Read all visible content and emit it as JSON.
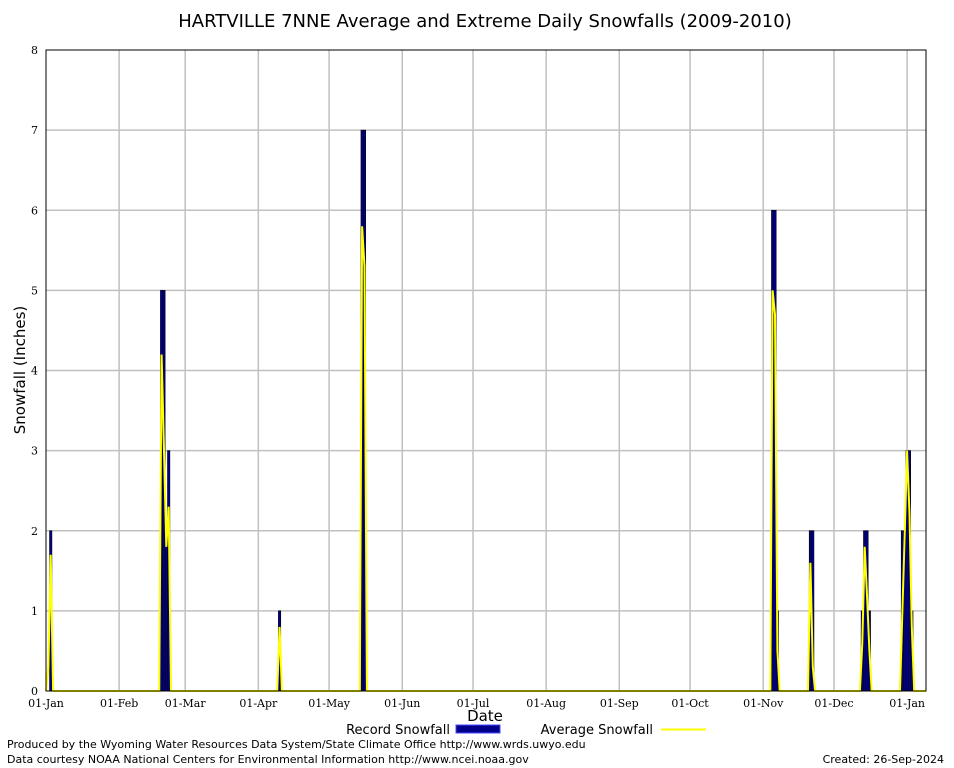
{
  "chart_data": {
    "type": "bar",
    "title": "HARTVILLE 7NNE Average and Extreme Daily Snowfalls (2009-2010)",
    "xlabel": "Date",
    "ylabel": "Snowfall (Inches)",
    "ylim": [
      0,
      8
    ],
    "yticks": [
      "0",
      "1",
      "2",
      "3",
      "4",
      "5",
      "6",
      "7",
      "8"
    ],
    "x_tick_labels": [
      "01-Jan",
      "01-Feb",
      "01-Mar",
      "01-Apr",
      "01-May",
      "01-Jun",
      "01-Jul",
      "01-Aug",
      "01-Sep",
      "01-Oct",
      "01-Nov",
      "01-Dec",
      "01-Jan"
    ],
    "x_tick_days": [
      0,
      31,
      59,
      90,
      120,
      151,
      181,
      212,
      243,
      273,
      304,
      334,
      365
    ],
    "xlim_days": [
      0,
      373
    ],
    "grid": true,
    "legend_placement": "bottom",
    "series": [
      {
        "name": "Record Snowfall",
        "style": "bars",
        "color": "#00008b",
        "points": [
          {
            "day": 2,
            "value": 2.0
          },
          {
            "day": 49,
            "value": 5.0
          },
          {
            "day": 50,
            "value": 5.0
          },
          {
            "day": 51,
            "value": 2.0
          },
          {
            "day": 52,
            "value": 3.0
          },
          {
            "day": 99,
            "value": 1.0
          },
          {
            "day": 134,
            "value": 7.0
          },
          {
            "day": 135,
            "value": 7.0
          },
          {
            "day": 308,
            "value": 6.0
          },
          {
            "day": 309,
            "value": 6.0
          },
          {
            "day": 310,
            "value": 1.0
          },
          {
            "day": 324,
            "value": 2.0
          },
          {
            "day": 325,
            "value": 2.0
          },
          {
            "day": 346,
            "value": 1.0
          },
          {
            "day": 347,
            "value": 2.0
          },
          {
            "day": 348,
            "value": 2.0
          },
          {
            "day": 349,
            "value": 1.0
          },
          {
            "day": 363,
            "value": 2.0
          },
          {
            "day": 364,
            "value": 2.0
          },
          {
            "day": 365,
            "value": 3.0
          },
          {
            "day": 366,
            "value": 3.0
          },
          {
            "day": 367,
            "value": 1.0
          }
        ]
      },
      {
        "name": "Average Snowfall",
        "style": "line",
        "color": "#ffff00",
        "points": [
          {
            "day": 0,
            "value": 0
          },
          {
            "day": 1,
            "value": 0.3
          },
          {
            "day": 2,
            "value": 1.7
          },
          {
            "day": 3,
            "value": 0
          },
          {
            "day": 48,
            "value": 0
          },
          {
            "day": 49,
            "value": 4.2
          },
          {
            "day": 50,
            "value": 3.0
          },
          {
            "day": 51,
            "value": 1.8
          },
          {
            "day": 52,
            "value": 2.3
          },
          {
            "day": 53,
            "value": 0
          },
          {
            "day": 98,
            "value": 0
          },
          {
            "day": 99,
            "value": 0.8
          },
          {
            "day": 100,
            "value": 0
          },
          {
            "day": 133,
            "value": 0
          },
          {
            "day": 134,
            "value": 5.8
          },
          {
            "day": 135,
            "value": 5.3
          },
          {
            "day": 136,
            "value": 0
          },
          {
            "day": 307,
            "value": 0
          },
          {
            "day": 308,
            "value": 5.0
          },
          {
            "day": 309,
            "value": 4.7
          },
          {
            "day": 310,
            "value": 0.5
          },
          {
            "day": 311,
            "value": 0
          },
          {
            "day": 323,
            "value": 0
          },
          {
            "day": 324,
            "value": 1.6
          },
          {
            "day": 325,
            "value": 0.3
          },
          {
            "day": 326,
            "value": 0
          },
          {
            "day": 345,
            "value": 0
          },
          {
            "day": 346,
            "value": 0.6
          },
          {
            "day": 347,
            "value": 1.8
          },
          {
            "day": 348,
            "value": 1.2
          },
          {
            "day": 349,
            "value": 0.5
          },
          {
            "day": 350,
            "value": 0
          },
          {
            "day": 362,
            "value": 0
          },
          {
            "day": 363,
            "value": 1.0
          },
          {
            "day": 364,
            "value": 2.0
          },
          {
            "day": 365,
            "value": 3.0
          },
          {
            "day": 366,
            "value": 2.2
          },
          {
            "day": 367,
            "value": 0.8
          },
          {
            "day": 368,
            "value": 0
          },
          {
            "day": 373,
            "value": 0
          }
        ]
      }
    ]
  },
  "footer": {
    "line1": "Produced by the Wyoming Water Resources Data System/State Climate Office http://www.wrds.uwyo.edu",
    "line2": "Data courtesy NOAA National Centers for Environmental Information http://www.ncei.noaa.gov",
    "created": "Created:  26-Sep-2024"
  },
  "colors": {
    "grid": "#c0c0c0",
    "record": "#00008b",
    "average": "#ffff00"
  }
}
